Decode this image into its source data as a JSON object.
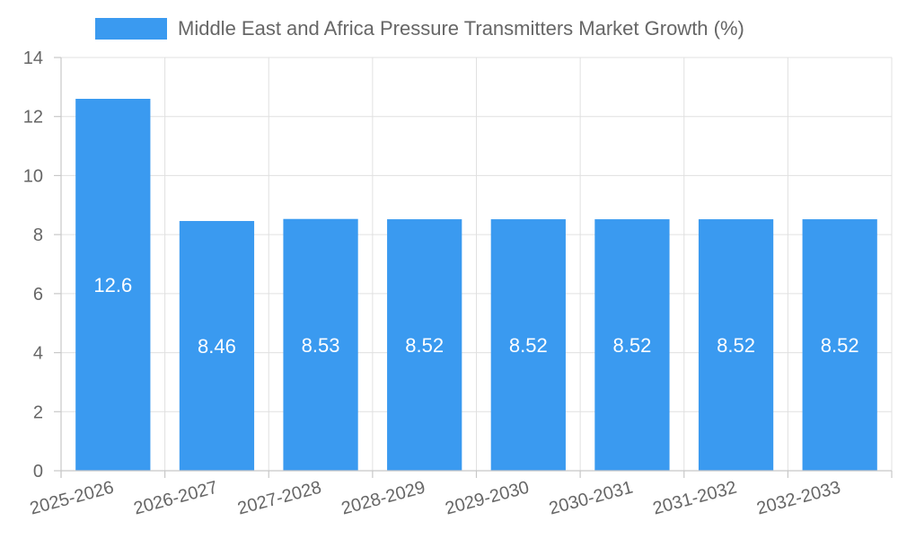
{
  "chart_data": {
    "type": "bar",
    "categories": [
      "2025-2026",
      "2026-2027",
      "2027-2028",
      "2028-2029",
      "2029-2030",
      "2030-2031",
      "2031-2032",
      "2032-2033"
    ],
    "series": [
      {
        "name": "Middle East and Africa Pressure Transmitters Market Growth (%)",
        "values": [
          12.6,
          8.46,
          8.53,
          8.52,
          8.52,
          8.52,
          8.52,
          8.52
        ],
        "value_labels": [
          "12.6",
          "8.46",
          "8.53",
          "8.52",
          "8.52",
          "8.52",
          "8.52",
          "8.52"
        ],
        "color": "#3a9af0"
      }
    ],
    "yticks": [
      "0",
      "2",
      "4",
      "6",
      "8",
      "10",
      "12",
      "14"
    ],
    "ylim": [
      0,
      14
    ],
    "grid": true,
    "legend": "top-center"
  }
}
